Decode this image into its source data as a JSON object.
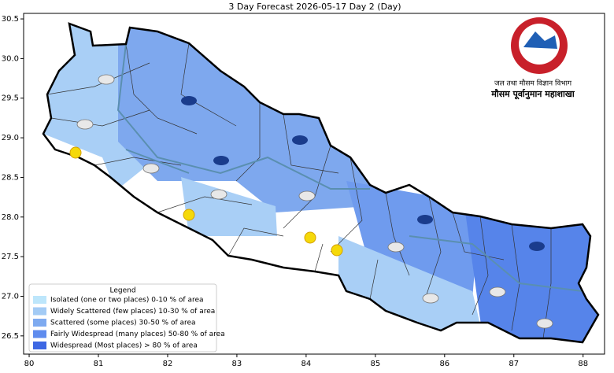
{
  "title": "3 Day Forecast 2026-05-17 Day 2 (Day)",
  "map": {
    "xlim": [
      79.92,
      88.31
    ],
    "ylim": [
      26.27,
      30.57
    ],
    "xticks": [
      80,
      81,
      82,
      83,
      84,
      85,
      86,
      87,
      88
    ],
    "yticks": [
      {
        "value": 26.5,
        "label": "26.5"
      },
      {
        "value": 27,
        "label": "27.0"
      },
      {
        "value": 27.5,
        "label": "27.5"
      },
      {
        "value": 28,
        "label": "28.0"
      },
      {
        "value": 28.5,
        "label": "28.5"
      },
      {
        "value": 29,
        "label": "29.0"
      },
      {
        "value": 29.5,
        "label": "29.5"
      },
      {
        "value": 30,
        "label": "30.0"
      },
      {
        "value": 30.5,
        "label": "30.5"
      }
    ]
  },
  "legend": {
    "title": "Legend",
    "items": [
      {
        "name": "Isolated (one or two places)  0-10 % of area",
        "color": "#bde6fb"
      },
      {
        "name": "Widely Scattered (few places)  10-30 % of area",
        "color": "#a3cbf5"
      },
      {
        "name": "Scattered (some places)  30-50 % of area",
        "color": "#7eaaf0"
      },
      {
        "name": "Fairly Widespread (many places)  50-80 % of area",
        "color": "#5f8cee"
      },
      {
        "name": "Widespread (Most places) > 80 % of area",
        "color": "#3d67e3"
      }
    ]
  },
  "logo": {
    "department": "जल तथा मौसम विज्ञान विभाग",
    "division": "मौसम पूर्वानुमान महाशाखा"
  }
}
